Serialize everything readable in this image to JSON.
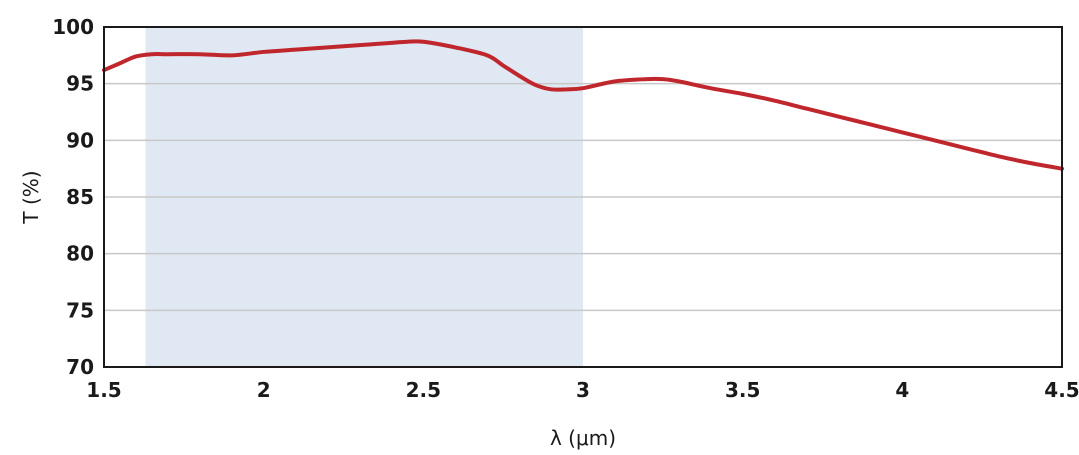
{
  "chart_data": {
    "type": "line",
    "title": "",
    "xlabel": "λ (μm)",
    "ylabel": "T (%)",
    "xlim": [
      1.5,
      4.5
    ],
    "ylim": [
      70,
      100
    ],
    "xticks": [
      1.5,
      2,
      2.5,
      3,
      3.5,
      4,
      4.5
    ],
    "xtick_labels": [
      "1.5",
      "2",
      "2.5",
      "3",
      "3.5",
      "4",
      "4.5"
    ],
    "yticks": [
      70,
      75,
      80,
      85,
      90,
      95,
      100
    ],
    "ytick_labels": [
      "70",
      "75",
      "80",
      "85",
      "90",
      "95",
      "100"
    ],
    "grid": "horizontal",
    "highlight_band": {
      "x_start": 1.63,
      "x_end": 3.0,
      "color": "#dfe8f3"
    },
    "series": [
      {
        "name": "",
        "color": "#c0272d",
        "x": [
          1.5,
          1.55,
          1.6,
          1.65,
          1.7,
          1.8,
          1.9,
          2.0,
          2.1,
          2.2,
          2.3,
          2.4,
          2.45,
          2.5,
          2.6,
          2.7,
          2.75,
          2.8,
          2.85,
          2.9,
          2.95,
          3.0,
          3.1,
          3.2,
          3.25,
          3.3,
          3.4,
          3.5,
          3.6,
          3.7,
          3.8,
          3.9,
          4.0,
          4.1,
          4.2,
          4.3,
          4.4,
          4.5
        ],
        "y": [
          96.2,
          96.8,
          97.4,
          97.6,
          97.6,
          97.6,
          97.5,
          97.8,
          98.0,
          98.2,
          98.4,
          98.6,
          98.7,
          98.7,
          98.2,
          97.5,
          96.6,
          95.7,
          94.9,
          94.5,
          94.5,
          94.6,
          95.2,
          95.4,
          95.4,
          95.2,
          94.6,
          94.1,
          93.5,
          92.8,
          92.1,
          91.4,
          90.7,
          90.0,
          89.3,
          88.6,
          88.0,
          87.5
        ]
      }
    ]
  }
}
